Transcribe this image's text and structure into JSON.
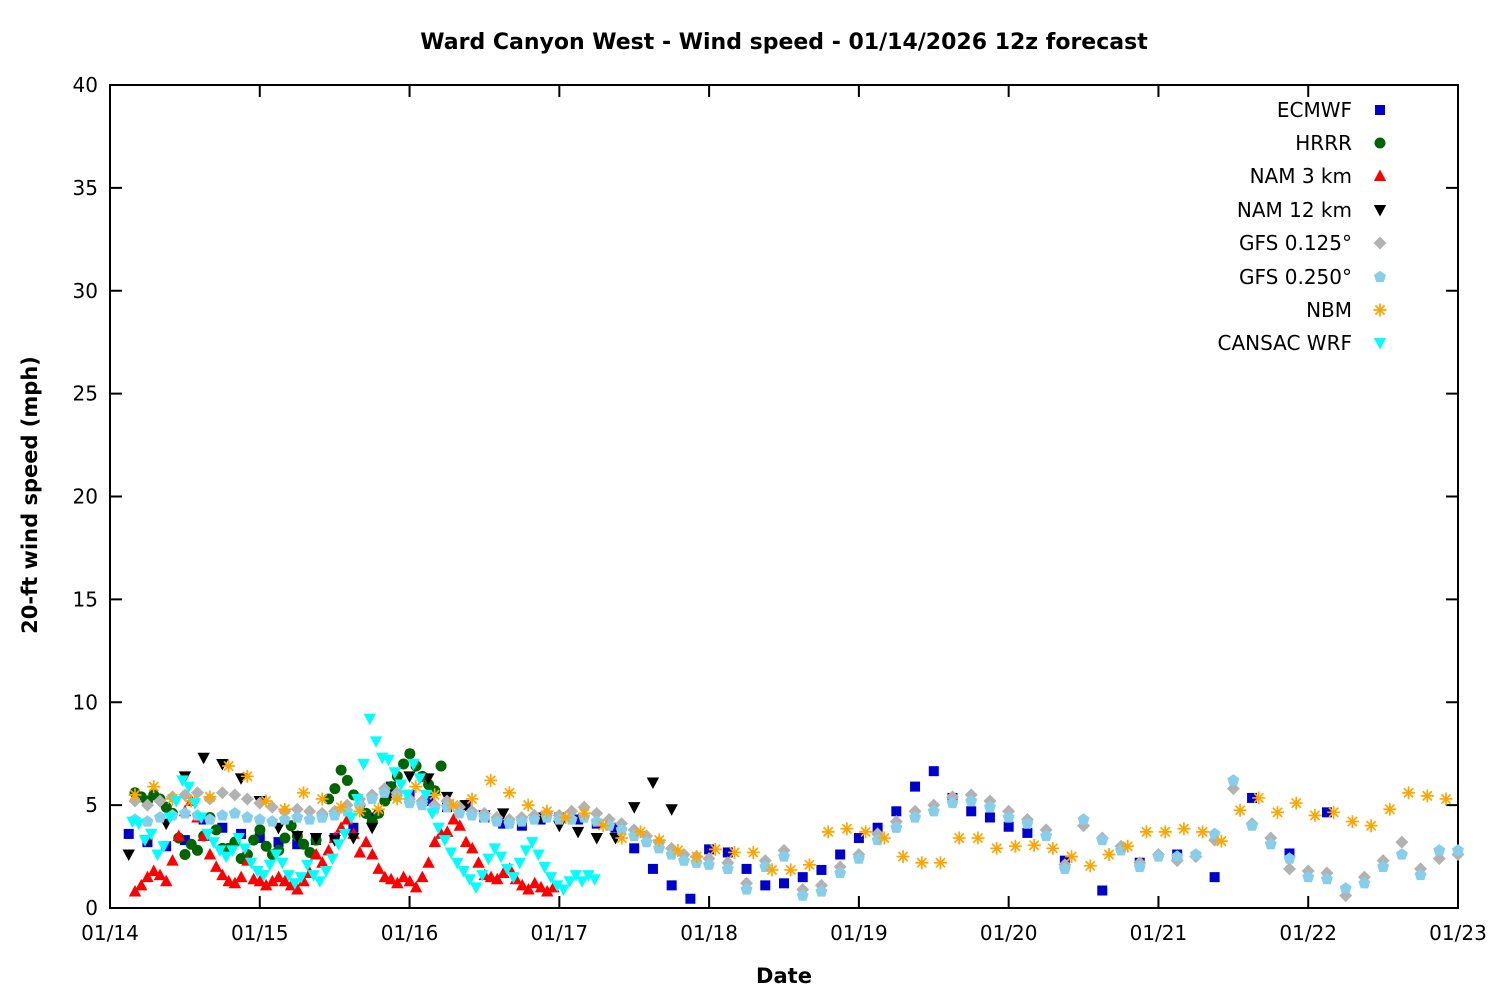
{
  "chart_data": {
    "type": "scatter",
    "title": "Ward Canyon West - Wind speed - 01/14/2026 12z forecast",
    "xlabel": "Date",
    "ylabel": "20-ft wind speed (mph)",
    "x_tick_labels": [
      "01/14",
      "01/15",
      "01/16",
      "01/17",
      "01/18",
      "01/19",
      "01/20",
      "01/21",
      "01/22",
      "01/23"
    ],
    "y_ticks": [
      0,
      5,
      10,
      15,
      20,
      25,
      30,
      35,
      40
    ],
    "ylim": [
      0,
      40
    ],
    "xlim_days": [
      0,
      9
    ],
    "grid": false,
    "legend_position": "top-right-inside",
    "background": "#ffffff",
    "axis_color": "#000000",
    "x_unit": "days since 01/14",
    "series": [
      {
        "name": "ECMWF",
        "marker": "square",
        "color": "#0000cd",
        "segments": [
          {
            "x0": 0.125,
            "dx": 0.125,
            "v": [
              3.6,
              3.2,
              3.0,
              3.3,
              4.3,
              3.9,
              3.6,
              3.4,
              3.2,
              3.1,
              3.3,
              3.4,
              3.9,
              4.4,
              5.9,
              5.5,
              5.2,
              4.9,
              5.0,
              4.4,
              4.1,
              4.0,
              4.3,
              4.4,
              4.3,
              4.1,
              3.9,
              2.9,
              1.9,
              1.1,
              0.45,
              2.85,
              2.7,
              1.9,
              1.1,
              1.2,
              1.5,
              1.85,
              2.6,
              3.4,
              3.9,
              4.7,
              5.9,
              6.65,
              5.35,
              4.7,
              4.4,
              3.95
            ]
          },
          {
            "x0": 6.125,
            "dx": 0.25,
            "v": [
              3.65,
              2.3,
              0.85,
              2.2,
              2.6,
              1.5,
              5.35,
              2.65,
              4.65
            ]
          }
        ]
      },
      {
        "name": "HRRR",
        "marker": "circle",
        "color": "#006400",
        "segments": [
          {
            "x0": 0.167,
            "dx": 0.0417,
            "v": [
              5.6,
              5.4,
              5.2,
              5.5,
              5.3,
              4.9,
              4.6,
              3.4,
              2.6,
              3.1,
              2.8,
              3.5,
              4.4,
              3.8,
              2.9,
              2.9,
              3.2,
              2.4,
              2.6,
              3.3,
              3.8,
              3.0,
              2.6,
              2.8,
              3.4,
              4.0,
              3.5,
              3.1,
              2.7,
              3.3,
              4.5,
              5.3,
              5.8,
              6.7,
              6.2,
              5.5,
              5.0,
              4.6,
              4.2,
              4.6,
              5.2,
              5.9,
              6.4,
              7.0,
              7.5,
              6.9,
              6.4,
              6.0,
              5.7,
              6.9
            ]
          }
        ]
      },
      {
        "name": "NAM 3 km",
        "marker": "triangle-up",
        "color": "#ff0000",
        "segments": [
          {
            "x0": 0.167,
            "dx": 0.0417,
            "v": [
              0.8,
              1.1,
              1.5,
              1.8,
              1.6,
              1.3,
              2.3,
              3.5,
              4.7,
              5.2,
              4.4,
              3.5,
              2.6,
              2.0,
              1.6,
              1.3,
              1.2,
              1.5,
              2.3,
              1.4,
              1.3,
              1.1,
              1.3,
              1.5,
              1.3,
              1.1,
              0.9,
              1.3,
              1.7,
              2.6,
              2.2,
              2.8,
              3.4,
              3.9,
              4.3,
              3.6,
              2.7,
              3.2,
              2.6,
              1.9,
              1.5,
              1.4,
              1.2,
              1.5,
              1.3,
              1.0,
              1.5,
              2.2,
              3.2,
              3.6,
              3.7,
              4.3,
              4.0,
              3.2,
              2.9,
              2.2,
              1.6,
              1.5,
              1.4,
              1.7,
              1.9,
              1.4,
              1.1,
              0.9,
              1.2,
              1.0,
              0.8,
              1.0
            ]
          }
        ]
      },
      {
        "name": "NAM 12 km",
        "marker": "triangle-down",
        "color": "#000000",
        "segments": [
          {
            "x0": 0.125,
            "dx": 0.125,
            "v": [
              2.6,
              3.3,
              4.1,
              6.4,
              7.3,
              7.0,
              6.3,
              5.2,
              3.9,
              3.5,
              3.4,
              3.3,
              3.4,
              3.9,
              5.5,
              6.4,
              6.3,
              5.4,
              5.0,
              4.5,
              4.6,
              4.2,
              4.4,
              4.0,
              3.7,
              3.4,
              3.4,
              4.9,
              6.1,
              4.8
            ]
          }
        ]
      },
      {
        "name": "GFS 0.125°",
        "marker": "diamond",
        "color": "#b2b2b2",
        "segments": [
          {
            "x0": 0.167,
            "dx": 0.0833,
            "v": [
              5.2,
              5.0,
              5.2,
              5.4,
              5.5,
              5.6,
              5.3,
              5.6,
              5.5,
              5.3,
              5.1,
              4.9,
              4.7,
              4.8,
              4.7,
              4.6,
              4.7,
              5.0,
              5.3,
              5.5,
              5.8,
              5.6,
              5.3,
              5.2,
              5.0,
              5.2,
              4.9,
              4.7,
              4.6,
              4.4,
              4.3,
              4.4,
              4.5,
              4.6,
              4.5,
              4.7,
              4.9,
              4.6,
              4.3,
              4.1,
              3.8,
              3.5,
              3.2,
              2.9,
              2.6,
              2.5,
              2.4
            ]
          },
          {
            "x0": 4.125,
            "dx": 0.125,
            "v": [
              2.2,
              1.2,
              2.3,
              2.8,
              0.9,
              1.1,
              2.0,
              2.6,
              3.6,
              4.2,
              4.7,
              5.0,
              5.4,
              5.5,
              5.2,
              4.7,
              4.3,
              3.8,
              2.1,
              4.0,
              3.4,
              3.0,
              2.2,
              2.6,
              2.3,
              2.5,
              3.3,
              5.8,
              4.1,
              3.4,
              1.9,
              1.8,
              1.7,
              0.6,
              1.5,
              2.3,
              3.2,
              1.9,
              2.4,
              2.6
            ]
          }
        ]
      },
      {
        "name": "GFS 0.250°",
        "marker": "pentagon",
        "color": "#87ceeb",
        "segments": [
          {
            "x0": 0.167,
            "dx": 0.0833,
            "v": [
              4.3,
              4.2,
              4.4,
              4.5,
              4.6,
              4.5,
              4.3,
              4.5,
              4.6,
              4.4,
              4.3,
              4.2,
              4.3,
              4.4,
              4.3,
              4.4,
              4.5,
              4.7,
              5.0,
              5.3,
              5.6,
              5.4,
              5.1,
              5.0,
              4.8,
              4.9,
              4.6,
              4.5,
              4.4,
              4.2,
              4.1,
              4.2,
              4.3,
              4.4,
              4.3,
              4.3,
              4.4,
              4.2,
              4.0,
              3.8,
              3.5,
              3.2,
              2.9,
              2.6,
              2.3,
              2.2,
              2.1
            ]
          },
          {
            "x0": 4.125,
            "dx": 0.125,
            "v": [
              1.9,
              0.9,
              2.0,
              2.5,
              0.6,
              0.8,
              1.7,
              2.4,
              3.3,
              3.9,
              4.4,
              4.7,
              5.1,
              5.2,
              4.9,
              4.4,
              4.1,
              3.5,
              1.9,
              4.3,
              3.3,
              2.8,
              2.0,
              2.5,
              2.5,
              2.6,
              3.6,
              6.2,
              4.0,
              3.1,
              2.4,
              1.5,
              1.4,
              0.95,
              1.2,
              2.0,
              2.6,
              1.6,
              2.8,
              2.8
            ]
          }
        ]
      },
      {
        "name": "NBM",
        "marker": "asterisk",
        "color": "#ffa500",
        "segments": [
          {
            "x0": 0.167,
            "dx": 0.125,
            "v": [
              5.5,
              5.9,
              5.3,
              5.2,
              5.4,
              6.9,
              6.4,
              5.2,
              4.8,
              5.6,
              5.3,
              4.9,
              4.7,
              4.8,
              5.3,
              5.9,
              5.5,
              5.0,
              5.3,
              6.2,
              5.6,
              5.0,
              4.7,
              4.4,
              4.6,
              4.0,
              3.4,
              3.7,
              3.3,
              2.8,
              2.5,
              2.85
            ]
          },
          {
            "x0": 4.17,
            "dx": 0.125,
            "v": [
              2.7,
              2.7,
              1.85,
              1.85,
              2.1,
              3.7,
              3.85,
              3.7,
              3.4,
              2.5,
              2.2,
              2.2,
              3.4,
              3.4,
              2.9,
              3.0,
              3.05,
              2.9,
              2.5,
              2.05,
              2.6,
              3.0,
              3.7,
              3.7,
              3.85,
              3.7,
              3.25,
              4.75,
              5.35,
              4.65,
              5.1,
              4.5,
              4.65,
              4.2,
              4.0,
              4.8,
              5.6,
              5.45,
              5.3
            ]
          }
        ]
      },
      {
        "name": "CANSAC WRF",
        "marker": "triangle-down",
        "color": "#00ffff",
        "segments": [
          {
            "x0": 0.15,
            "dx": 0.0417,
            "v": [
              4.2,
              4.1,
              3.3,
              3.6,
              2.6,
              3.0,
              4.4,
              5.2,
              6.2,
              5.9,
              5.1,
              4.4,
              3.6,
              3.2,
              2.8,
              2.5,
              2.8,
              3.4,
              2.9,
              2.2,
              1.8,
              1.6,
              2.1,
              2.6,
              2.2,
              1.6,
              1.2,
              1.5,
              2.1,
              1.6,
              1.3,
              1.8,
              2.4,
              3.1,
              3.6,
              4.4,
              5.3,
              7.0,
              9.2,
              8.1,
              7.3,
              7.2,
              6.6,
              6.0,
              5.5,
              7.0,
              6.3,
              5.5,
              4.6,
              3.9,
              3.3,
              2.7,
              2.2,
              1.8,
              1.4,
              1.0,
              1.6,
              2.4,
              2.9,
              2.5,
              1.9,
              1.5,
              2.2,
              2.8,
              3.2,
              2.6,
              2.0,
              1.5,
              1.1,
              0.9,
              1.3,
              1.6,
              1.3,
              1.6,
              1.4
            ]
          }
        ]
      }
    ]
  }
}
